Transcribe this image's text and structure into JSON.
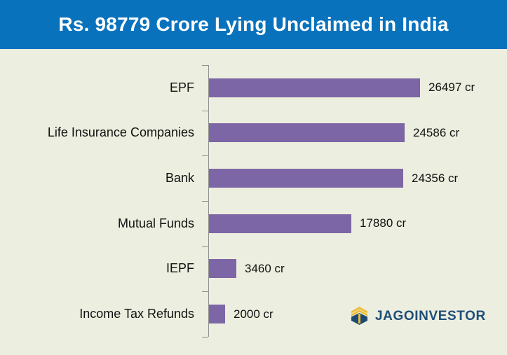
{
  "header": {
    "title": "Rs. 98779 Crore Lying Unclaimed in India",
    "bg_color": "#0972bd",
    "text_color": "#ffffff"
  },
  "chart_data": {
    "type": "bar",
    "orientation": "horizontal",
    "title": "Rs. 98779 Crore Lying Unclaimed in India",
    "categories": [
      "EPF",
      "Life Insurance Companies",
      "Bank",
      "Mutual Funds",
      "IEPF",
      "Income Tax Refunds"
    ],
    "values": [
      26497,
      24586,
      24356,
      17880,
      3460,
      2000
    ],
    "value_labels": [
      "26497 cr",
      "24586 cr",
      "24356 cr",
      "17880 cr",
      "3460 cr",
      "2000 cr"
    ],
    "unit": "cr",
    "xlim": [
      0,
      28000
    ],
    "grid": false,
    "legend": false,
    "bar_color": "#7d66a5",
    "background_color": "#eceedf",
    "axis_color": "#8e9190",
    "label_color": "#111111"
  },
  "logo": {
    "text": "JAGOINVESTOR",
    "text_color": "#1f4e79",
    "icon_name": "jagoinvestor-house-icon",
    "icon_gold": "#edbe33",
    "icon_navy": "#1d4a72"
  }
}
